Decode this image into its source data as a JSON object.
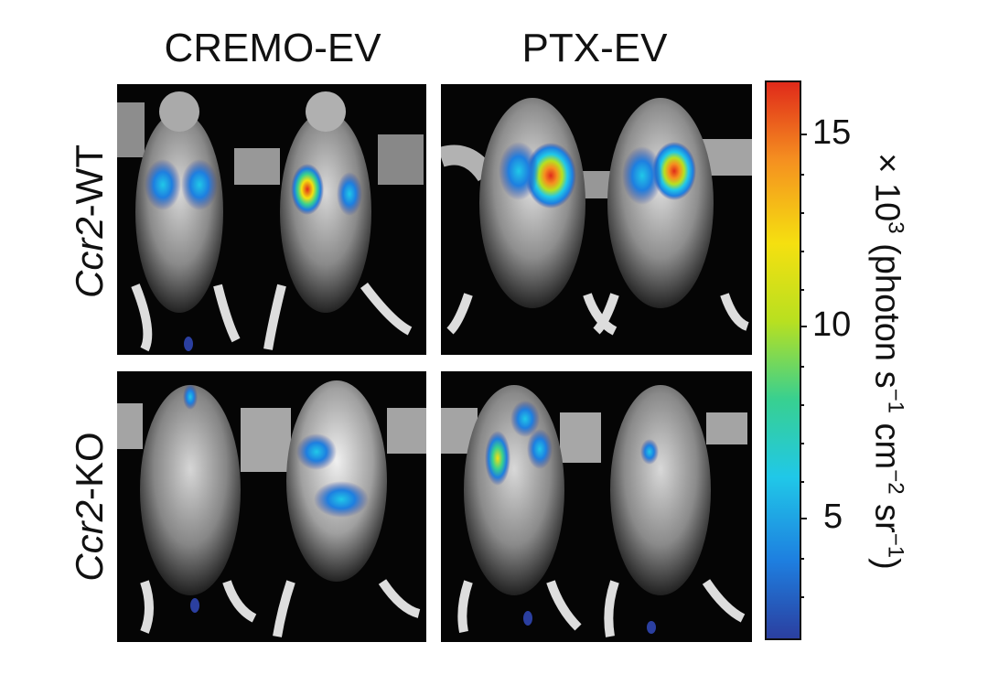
{
  "columns": [
    "CREMO-EV",
    "PTX-EV"
  ],
  "rows": [
    {
      "italic": "Ccr2",
      "suffix": "-WT"
    },
    {
      "italic": "Ccr2",
      "suffix": "-KO"
    }
  ],
  "colorbar": {
    "ticks": [
      "15",
      "10",
      "5"
    ],
    "title_prefix": "× 10",
    "title_exp": "3",
    "title_rest_1": " (photon s",
    "title_sup_1": "−1",
    "title_rest_2": " cm",
    "title_sup_2": "−2",
    "title_rest_3": " sr",
    "title_sup_3": "−1",
    "title_close": ")",
    "colors": [
      "#2b3fa0",
      "#1e7fe0",
      "#20c8e8",
      "#38d090",
      "#b8e020",
      "#f5e010",
      "#f59020",
      "#e02a1a"
    ]
  }
}
